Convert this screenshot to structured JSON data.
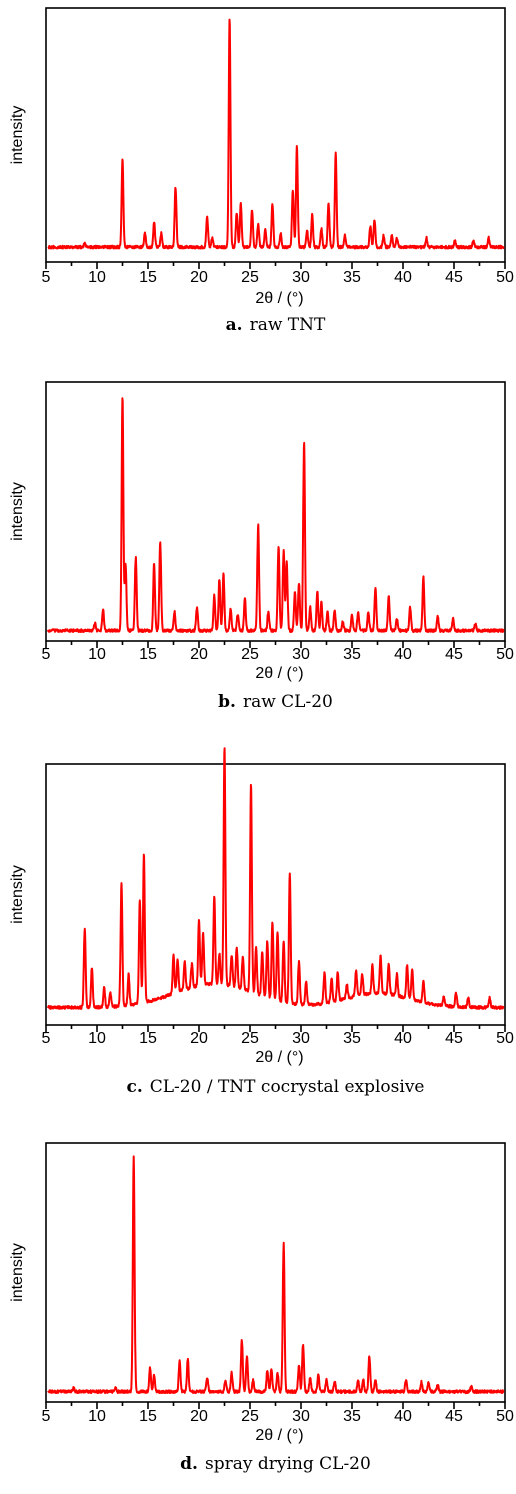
{
  "figure": {
    "panels": [
      {
        "caption_letter": "a.",
        "caption_text": "raw TNT"
      },
      {
        "caption_letter": "b.",
        "caption_text": "raw CL-20"
      },
      {
        "caption_letter": "c.",
        "caption_text": "CL-20 / TNT cocrystal explosive"
      },
      {
        "caption_letter": "d.",
        "caption_text": "spray drying CL-20"
      }
    ]
  },
  "colors": {
    "series": "#ff0000",
    "axis": "#000000"
  },
  "chart_data": [
    {
      "type": "line",
      "title": "",
      "xlabel": "2θ / (°)",
      "ylabel": "intensity",
      "xlim": [
        5,
        50
      ],
      "ylim": [
        0,
        100
      ],
      "xticks": [
        5,
        10,
        15,
        20,
        25,
        30,
        35,
        40,
        45,
        50
      ],
      "grid": false,
      "series": [
        {
          "peaks": [
            [
              8.8,
              1.5
            ],
            [
              12.5,
              38
            ],
            [
              14.7,
              6
            ],
            [
              15.6,
              11
            ],
            [
              16.3,
              6
            ],
            [
              17.7,
              26
            ],
            [
              20.8,
              13
            ],
            [
              21.3,
              4
            ],
            [
              23.0,
              100
            ],
            [
              23.7,
              15
            ],
            [
              24.1,
              19
            ],
            [
              25.2,
              16
            ],
            [
              25.8,
              10
            ],
            [
              26.5,
              8
            ],
            [
              27.2,
              19
            ],
            [
              28.0,
              6
            ],
            [
              29.2,
              25
            ],
            [
              29.6,
              44
            ],
            [
              30.6,
              7
            ],
            [
              31.1,
              14
            ],
            [
              32.0,
              8
            ],
            [
              32.7,
              19
            ],
            [
              33.4,
              41
            ],
            [
              34.3,
              5
            ],
            [
              36.8,
              9
            ],
            [
              37.2,
              12
            ],
            [
              38.1,
              5
            ],
            [
              38.9,
              5
            ],
            [
              39.4,
              4
            ],
            [
              42.3,
              4
            ],
            [
              45.1,
              3
            ],
            [
              46.9,
              3
            ],
            [
              48.4,
              4
            ]
          ],
          "baseline": 3
        }
      ]
    },
    {
      "type": "line",
      "title": "",
      "xlabel": "2θ / (°)",
      "ylabel": "intensity",
      "xlim": [
        5,
        50
      ],
      "ylim": [
        0,
        100
      ],
      "xticks": [
        5,
        10,
        15,
        20,
        25,
        30,
        35,
        40,
        45,
        50
      ],
      "grid": false,
      "series": [
        {
          "peaks": [
            [
              9.8,
              3
            ],
            [
              10.6,
              9
            ],
            [
              12.5,
              100
            ],
            [
              12.8,
              28
            ],
            [
              13.8,
              31
            ],
            [
              15.6,
              29
            ],
            [
              16.2,
              38
            ],
            [
              17.6,
              8
            ],
            [
              19.8,
              10
            ],
            [
              21.5,
              15
            ],
            [
              22.0,
              22
            ],
            [
              22.4,
              24
            ],
            [
              23.1,
              9
            ],
            [
              23.8,
              7
            ],
            [
              24.5,
              14
            ],
            [
              25.8,
              45
            ],
            [
              26.8,
              8
            ],
            [
              27.8,
              36
            ],
            [
              28.3,
              34
            ],
            [
              28.6,
              29
            ],
            [
              29.4,
              17
            ],
            [
              29.8,
              20
            ],
            [
              30.3,
              80
            ],
            [
              30.9,
              10
            ],
            [
              31.6,
              17
            ],
            [
              32.0,
              12
            ],
            [
              32.6,
              8
            ],
            [
              33.3,
              9
            ],
            [
              34.1,
              4
            ],
            [
              35.0,
              7
            ],
            [
              35.6,
              8
            ],
            [
              36.6,
              8
            ],
            [
              37.3,
              18
            ],
            [
              38.6,
              15
            ],
            [
              39.4,
              5
            ],
            [
              40.7,
              10
            ],
            [
              42.0,
              23
            ],
            [
              43.4,
              6
            ],
            [
              44.9,
              5
            ],
            [
              47.1,
              3
            ]
          ],
          "baseline": 1
        }
      ]
    },
    {
      "type": "line",
      "title": "",
      "xlabel": "2θ / (°)",
      "ylabel": "intensity",
      "xlim": [
        5,
        50
      ],
      "ylim": [
        0,
        100
      ],
      "xticks": [
        5,
        10,
        15,
        20,
        25,
        30,
        35,
        40,
        45,
        50
      ],
      "grid": false,
      "series": [
        {
          "peaks": [
            [
              8.8,
              33
            ],
            [
              9.5,
              17
            ],
            [
              10.7,
              8
            ],
            [
              11.3,
              6
            ],
            [
              12.4,
              52
            ],
            [
              13.1,
              13
            ],
            [
              14.2,
              44
            ],
            [
              14.6,
              63
            ],
            [
              17.5,
              16
            ],
            [
              17.9,
              14
            ],
            [
              18.6,
              12
            ],
            [
              19.3,
              10
            ],
            [
              20.0,
              28
            ],
            [
              20.4,
              22
            ],
            [
              21.5,
              37
            ],
            [
              22.0,
              13
            ],
            [
              22.5,
              100
            ],
            [
              23.2,
              13
            ],
            [
              23.7,
              17
            ],
            [
              24.3,
              14
            ],
            [
              25.1,
              88
            ],
            [
              25.6,
              20
            ],
            [
              26.2,
              19
            ],
            [
              26.7,
              24
            ],
            [
              27.2,
              33
            ],
            [
              27.7,
              29
            ],
            [
              28.3,
              26
            ],
            [
              28.9,
              55
            ],
            [
              29.8,
              18
            ],
            [
              30.5,
              10
            ],
            [
              32.3,
              13
            ],
            [
              33.0,
              10
            ],
            [
              33.6,
              12
            ],
            [
              34.5,
              6
            ],
            [
              35.4,
              11
            ],
            [
              36.0,
              9
            ],
            [
              37.0,
              12
            ],
            [
              37.8,
              16
            ],
            [
              38.6,
              13
            ],
            [
              39.4,
              9
            ],
            [
              40.4,
              14
            ],
            [
              40.9,
              13
            ],
            [
              42.0,
              9
            ],
            [
              44.0,
              4
            ],
            [
              45.2,
              6
            ],
            [
              46.4,
              4
            ],
            [
              48.5,
              4
            ]
          ],
          "baseline": 4,
          "humps": [
            [
              16,
              27,
              10,
              6
            ],
            [
              33,
              42,
              6,
              4
            ]
          ]
        }
      ]
    },
    {
      "type": "line",
      "title": "",
      "xlabel": "2θ / (°)",
      "ylabel": "intensity",
      "xlim": [
        5,
        50
      ],
      "ylim": [
        0,
        100
      ],
      "xticks": [
        5,
        10,
        15,
        20,
        25,
        30,
        35,
        40,
        45,
        50
      ],
      "grid": false,
      "series": [
        {
          "peaks": [
            [
              7.7,
              1.5
            ],
            [
              11.8,
              1.5
            ],
            [
              13.6,
              100
            ],
            [
              15.2,
              10
            ],
            [
              15.6,
              7
            ],
            [
              18.1,
              13
            ],
            [
              18.9,
              14
            ],
            [
              20.8,
              6
            ],
            [
              22.6,
              5
            ],
            [
              23.2,
              8
            ],
            [
              24.2,
              22
            ],
            [
              24.7,
              15
            ],
            [
              25.3,
              5
            ],
            [
              26.7,
              9
            ],
            [
              27.1,
              10
            ],
            [
              27.7,
              8
            ],
            [
              28.3,
              63
            ],
            [
              29.8,
              11
            ],
            [
              30.2,
              20
            ],
            [
              30.9,
              6
            ],
            [
              31.7,
              7
            ],
            [
              32.5,
              5
            ],
            [
              33.3,
              4
            ],
            [
              35.6,
              5
            ],
            [
              36.1,
              5
            ],
            [
              36.7,
              15
            ],
            [
              37.3,
              5
            ],
            [
              40.3,
              5
            ],
            [
              41.8,
              4
            ],
            [
              42.5,
              4
            ],
            [
              43.4,
              3
            ],
            [
              46.7,
              2
            ]
          ],
          "baseline": 1
        }
      ]
    }
  ]
}
